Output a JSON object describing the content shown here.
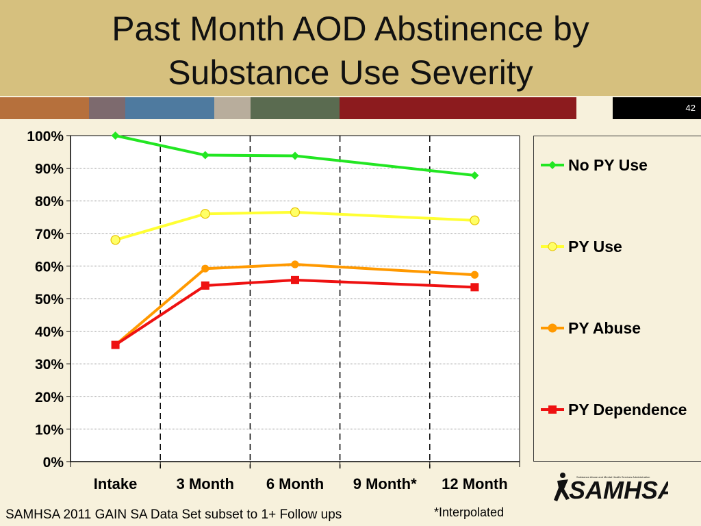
{
  "slide": {
    "title_line1": "Past Month AOD Abstinence by",
    "title_line2": "Substance Use Severity",
    "page_number": "42",
    "footer": "SAMHSA 2011 GAIN SA Data Set subset to 1+ Follow ups",
    "note": "*Interpolated",
    "logo_text": "SAMHSA",
    "logo_small": "Substance Abuse and Mental Health Services Administration",
    "stripe_colors": [
      "#b6703c",
      "#7d6a6e",
      "#4e7a9f",
      "#b8ad9c",
      "#5a6b50",
      "#8c1b1e",
      "#f7f1dc"
    ]
  },
  "chart_data": {
    "type": "line",
    "categories": [
      "Intake",
      "3 Month",
      "6 Month",
      "9 Month*",
      "12 Month"
    ],
    "ylim": [
      0,
      100
    ],
    "y_ticks": [
      "0%",
      "10%",
      "20%",
      "30%",
      "40%",
      "50%",
      "60%",
      "70%",
      "80%",
      "90%",
      "100%"
    ],
    "grid": true,
    "legend_placement": "right",
    "series": [
      {
        "name": "No PY Use",
        "color": "#22e622",
        "marker": "diamond",
        "values": [
          100,
          94,
          93.8,
          null,
          87.8
        ]
      },
      {
        "name": "PY Use",
        "color": "#ffff33",
        "marker": "circle",
        "values": [
          68,
          76,
          76.5,
          null,
          74
        ]
      },
      {
        "name": "PY Abuse",
        "color": "#ff9900",
        "marker": "circle",
        "values": [
          35.8,
          59.2,
          60.5,
          null,
          57.3
        ]
      },
      {
        "name": "PY Dependence",
        "color": "#ee1111",
        "marker": "square",
        "values": [
          35.8,
          54,
          55.7,
          null,
          53.5
        ]
      }
    ]
  }
}
